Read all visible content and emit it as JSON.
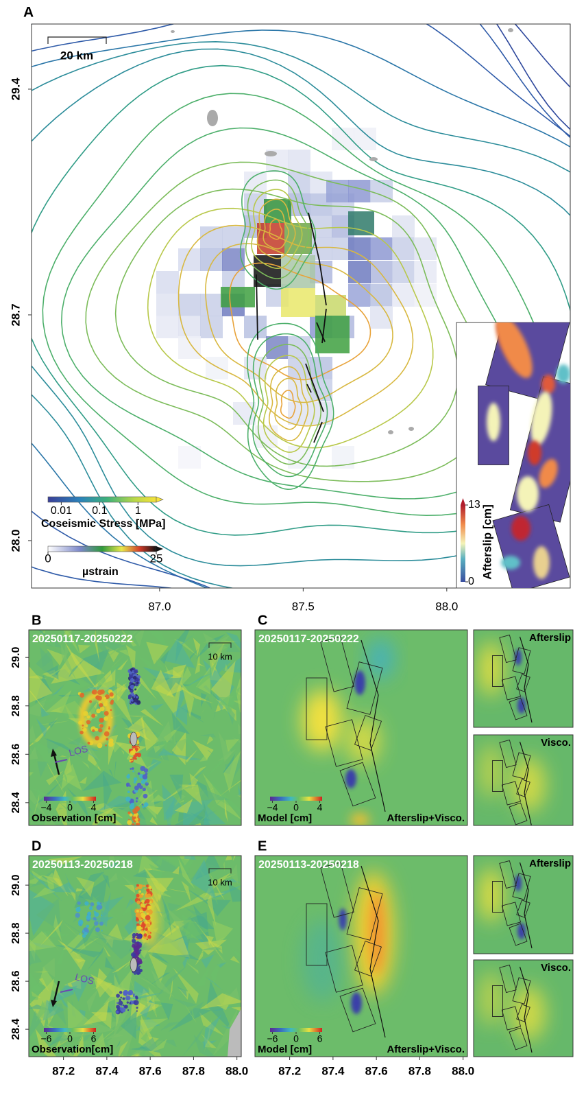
{
  "panel_a": {
    "label": "A",
    "xlim": [
      86.554,
      88.43
    ],
    "ylim": [
      27.853,
      29.602
    ],
    "xticks": [
      {
        "value": 87,
        "label": "87.0"
      },
      87.5,
      {
        "value": 88,
        "label": "88.0"
      }
    ],
    "yticks": [
      29.4,
      28.7,
      {
        "value": 28,
        "label": "28.0"
      }
    ],
    "scale_bar": "20 km",
    "stress_legend": {
      "title": "Coseismic Stress [MPa]",
      "scale": "log",
      "lim": [
        0.0045,
        3
      ],
      "ticks": [
        0.01,
        0.1,
        1
      ]
    },
    "strain_legend": {
      "title": "µstrain",
      "lim": [
        0,
        25
      ],
      "ticks": [
        0,
        25
      ]
    },
    "inset": {
      "title": "Afterslip [cm]",
      "lim": [
        0,
        13
      ],
      "ticks": [
        0,
        13
      ]
    }
  },
  "panel_b": {
    "label": "B",
    "period": "20250117-20250222",
    "scale_bar": "10 km",
    "los": "LOS",
    "ylim": [
      28.306,
      29.114
    ],
    "yticks": [
      {
        "value": 29,
        "label": "29.0"
      },
      28.8,
      28.6,
      28.4
    ],
    "legend": {
      "title": "Observation [cm]",
      "lim": [
        -4.4,
        4.4
      ],
      "ticks": [
        {
          "value": -4,
          "label": "−4"
        },
        0,
        4
      ]
    }
  },
  "panel_c": {
    "label": "C",
    "period": "20250117-20250222",
    "model": "Afterslip+Visco.",
    "insets": [
      "Afterslip",
      "Visco."
    ],
    "legend": {
      "title": "Model [cm]",
      "lim": [
        -4.4,
        4.4
      ],
      "ticks": [
        {
          "value": -4,
          "label": "−4"
        },
        0,
        4
      ]
    }
  },
  "panel_d": {
    "label": "D",
    "period": "20250113-20250218",
    "scale_bar": "10 km",
    "los": "LOS",
    "xlim": [
      87.04,
      88.02
    ],
    "xticks": [
      87.2,
      87.4,
      87.6,
      87.8,
      {
        "value": 88,
        "label": "88.0"
      }
    ],
    "ylim": [
      28.286,
      29.123
    ],
    "yticks": [
      {
        "value": 29,
        "label": "29.0"
      },
      28.8,
      28.6,
      28.4
    ],
    "legend": {
      "title": "Observation[cm]",
      "lim": [
        -6.6,
        6.6
      ],
      "ticks": [
        {
          "value": -6,
          "label": "−6"
        },
        0,
        6
      ]
    }
  },
  "panel_e": {
    "label": "E",
    "period": "20250113-20250218",
    "model": "Afterslip+Visco.",
    "insets": [
      "Afterslip",
      "Visco."
    ],
    "xlim": [
      87.04,
      88.02
    ],
    "xticks": [
      87.2,
      87.4,
      87.6,
      87.8,
      {
        "value": 88,
        "label": "88.0"
      }
    ],
    "legend": {
      "title": "Model [cm]",
      "lim": [
        -6.6,
        6.6
      ],
      "ticks": [
        {
          "value": -6,
          "label": "−6"
        },
        0,
        6
      ]
    }
  }
}
